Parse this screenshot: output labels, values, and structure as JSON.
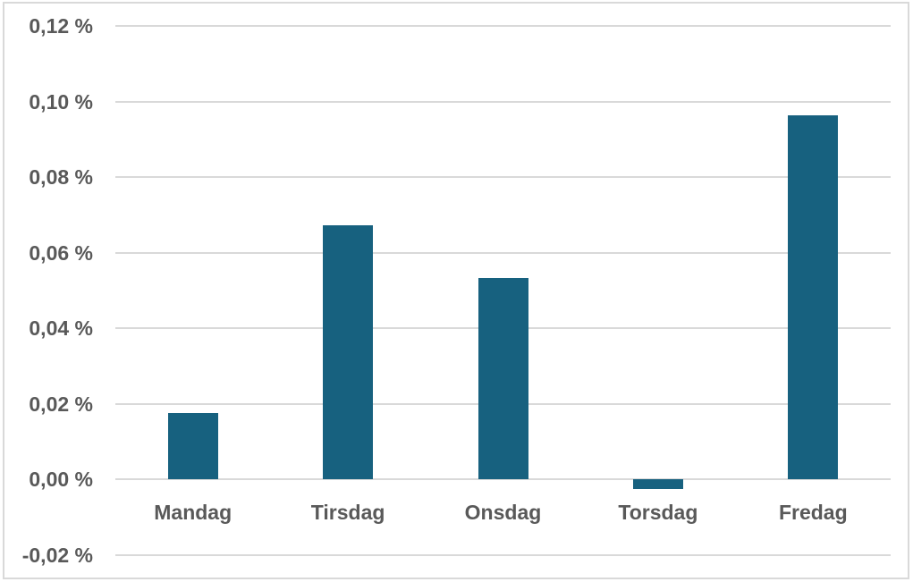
{
  "chart_data": {
    "type": "bar",
    "title": "",
    "xlabel": "",
    "ylabel": "",
    "unit": "%",
    "categories": [
      "Mandag",
      "Tirsdag",
      "Onsdag",
      "Torsdag",
      "Fredag"
    ],
    "values": [
      0.0175,
      0.0672,
      0.0533,
      -0.0027,
      0.0963
    ],
    "ylim": [
      -0.02,
      0.12
    ],
    "grid": true,
    "legend": "none",
    "y_ticks": [
      {
        "label": "0,12 %",
        "value": 0.12
      },
      {
        "label": "0,10 %",
        "value": 0.1
      },
      {
        "label": "0,08 %",
        "value": 0.08
      },
      {
        "label": "0,06 %",
        "value": 0.06
      },
      {
        "label": "0,04 %",
        "value": 0.04
      },
      {
        "label": "0,02 %",
        "value": 0.02
      },
      {
        "label": "0,00 %",
        "value": 0.0
      },
      {
        "label": "-0,02 %",
        "value": -0.02
      }
    ],
    "colors": {
      "bar": "#17617f",
      "gridline": "#d9d9d9",
      "border": "#d9d9d9",
      "text": "#595959",
      "background": "#ffffff"
    }
  }
}
